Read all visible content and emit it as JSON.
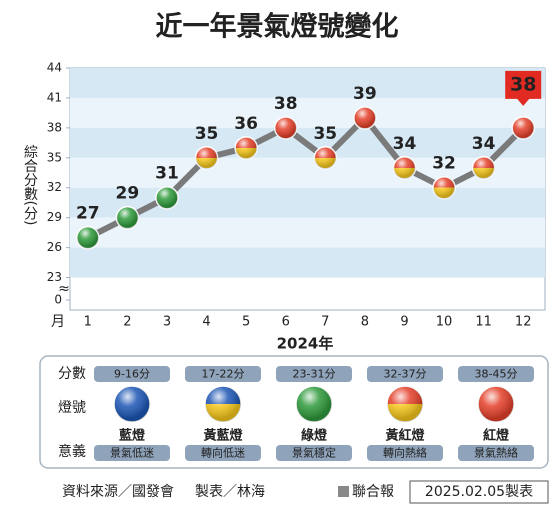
{
  "chart_data": {
    "type": "line",
    "title": "近一年景氣燈號變化",
    "y_label": "綜合分數(分)",
    "x_label": "月",
    "x_title": "2024年",
    "categories": [
      "1",
      "2",
      "3",
      "4",
      "5",
      "6",
      "7",
      "8",
      "9",
      "10",
      "11",
      "12"
    ],
    "series": [
      {
        "color": "#7a7a7a",
        "values": [
          27,
          29,
          31,
          35,
          36,
          38,
          35,
          39,
          34,
          32,
          34,
          38
        ],
        "marker_colors": [
          [
            "#2f9a3c"
          ],
          [
            "#2f9a3c"
          ],
          [
            "#2f9a3c"
          ],
          [
            "#e4402a",
            "#f4c61c"
          ],
          [
            "#e4402a",
            "#f4c61c"
          ],
          [
            "#e4402a"
          ],
          [
            "#e4402a",
            "#f4c61c"
          ],
          [
            "#e4402a"
          ],
          [
            "#e4402a",
            "#f4c61c"
          ],
          [
            "#e4402a",
            "#f4c61c"
          ],
          [
            "#e4402a",
            "#f4c61c"
          ],
          [
            "#e4402a"
          ]
        ]
      }
    ],
    "ylim": [
      0,
      44
    ],
    "yticks": [
      0,
      23,
      26,
      29,
      32,
      35,
      38,
      41,
      44
    ],
    "axis_break": true,
    "stripes": true
  },
  "legend": {
    "row_labels": [
      "分數",
      "燈號",
      "意義"
    ],
    "lights": [
      {
        "range": "9-16分",
        "name": "藍燈",
        "meaning": "景氣低迷",
        "colors": [
          "#1d56b4"
        ]
      },
      {
        "range": "17-22分",
        "name": "黃藍燈",
        "meaning": "轉向低迷",
        "colors": [
          "#1d56b4",
          "#f4c61c"
        ]
      },
      {
        "range": "23-31分",
        "name": "綠燈",
        "meaning": "景氣穩定",
        "colors": [
          "#2f9a3c"
        ]
      },
      {
        "range": "32-37分",
        "name": "黃紅燈",
        "meaning": "轉向熱絡",
        "colors": [
          "#e4402a",
          "#f4c61c"
        ]
      },
      {
        "range": "38-45分",
        "name": "紅燈",
        "meaning": "景氣熱絡",
        "colors": [
          "#e4402a"
        ]
      }
    ]
  },
  "footer": {
    "source": "資料來源／國發會",
    "author": "製表／林海",
    "paper": "聯合報",
    "date": "2025.02.05製表"
  }
}
